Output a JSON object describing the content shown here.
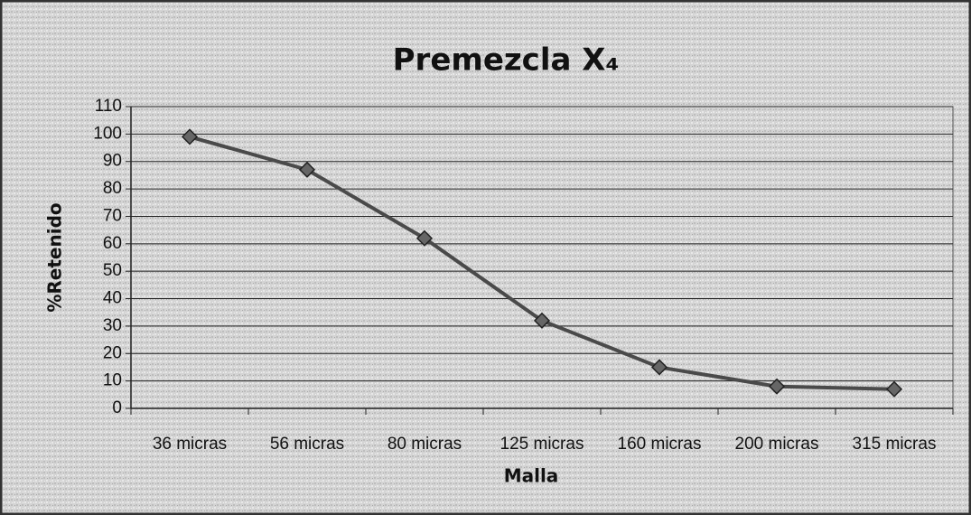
{
  "chart_data": {
    "type": "line",
    "title": "Premezcla X₄",
    "xlabel": "Malla",
    "ylabel": "%Retenido",
    "categories": [
      "36 micras",
      "56 micras",
      "80 micras",
      "125 micras",
      "160 micras",
      "200 micras",
      "315 micras"
    ],
    "series": [
      {
        "name": "%Retenido",
        "color": "#4a4a4a",
        "values": [
          99,
          87,
          62,
          32,
          15,
          8,
          7
        ]
      }
    ],
    "ylim": [
      0,
      110
    ],
    "yticks": [
      0,
      10,
      20,
      30,
      40,
      50,
      60,
      70,
      80,
      90,
      100,
      110
    ],
    "grid": true
  }
}
